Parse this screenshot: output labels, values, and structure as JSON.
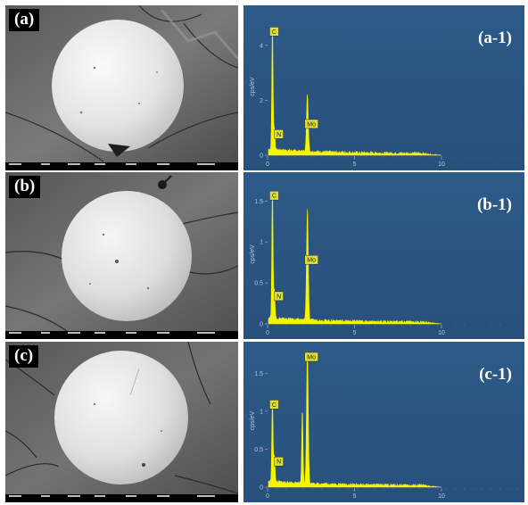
{
  "figure": {
    "rows": [
      {
        "sem_label": "(a)",
        "eds": {
          "label": "(a-1)",
          "chart_data": {
            "type": "line",
            "ylabel": "cps/eV",
            "x_ticks": [
              "0",
              "5",
              "10"
            ],
            "y_ticks": [
              "0",
              "2",
              "4"
            ],
            "xlim": [
              0,
              10
            ],
            "ylim": [
              0,
              5
            ],
            "peaks": [
              {
                "element": "C",
                "energy": 0.28,
                "cps_per_ev": 4.6
              },
              {
                "element": "N",
                "energy": 0.39,
                "cps_per_ev": 0.8
              },
              {
                "element": "Mo",
                "energy": 2.29,
                "cps_per_ev": 2.1
              }
            ],
            "color": "#f5f500"
          }
        }
      },
      {
        "sem_label": "(b)",
        "eds": {
          "label": "(b-1)",
          "chart_data": {
            "type": "line",
            "ylabel": "cps/eV",
            "x_ticks": [
              "0",
              "5",
              "10"
            ],
            "y_ticks": [
              "0",
              "0.5",
              "1",
              "1.5"
            ],
            "xlim": [
              0,
              10
            ],
            "ylim": [
              0,
              1.7
            ],
            "peaks": [
              {
                "element": "C",
                "energy": 0.28,
                "cps_per_ev": 1.6
              },
              {
                "element": "N",
                "energy": 0.39,
                "cps_per_ev": 0.35
              },
              {
                "element": "Mo",
                "energy": 2.29,
                "cps_per_ev": 1.35
              }
            ],
            "color": "#f5f500"
          }
        }
      },
      {
        "sem_label": "(c)",
        "eds": {
          "label": "(c-1)",
          "chart_data": {
            "type": "line",
            "ylabel": "cps/eV",
            "x_ticks": [
              "0",
              "5",
              "10"
            ],
            "y_ticks": [
              "0",
              "0.5",
              "1",
              "1.5"
            ],
            "xlim": [
              0,
              10
            ],
            "ylim": [
              0,
              1.75
            ],
            "peaks": [
              {
                "element": "C",
                "energy": 0.28,
                "cps_per_ev": 1.1
              },
              {
                "element": "N",
                "energy": 0.39,
                "cps_per_ev": 0.35
              },
              {
                "element": "Mo",
                "energy": 2.29,
                "cps_per_ev": 1.75
              }
            ],
            "color": "#f5f500"
          }
        }
      }
    ]
  }
}
